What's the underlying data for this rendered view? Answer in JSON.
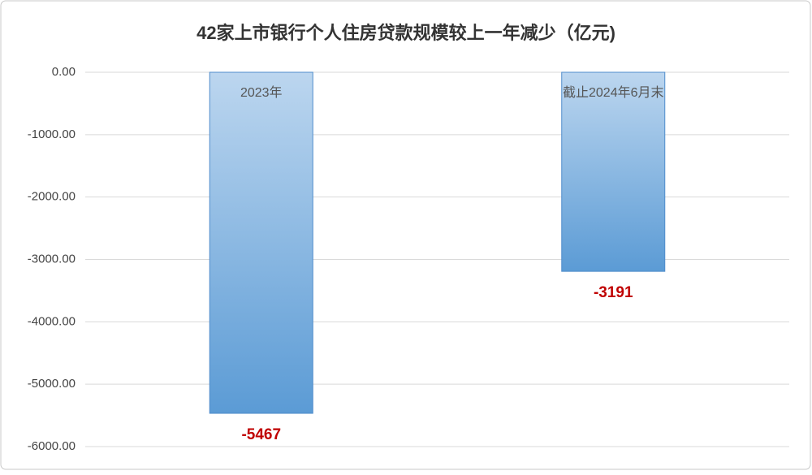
{
  "chart_data": {
    "type": "bar",
    "title": "42家上市银行个人住房贷款规模较上一年减少（亿元)",
    "categories": [
      "2023年",
      "截止2024年6月末"
    ],
    "values": [
      -5467,
      -3191
    ],
    "color": "#5b9bd5",
    "ylim": [
      -6000,
      0
    ],
    "yticks": [
      {
        "value": 0,
        "label": "0.00"
      },
      {
        "value": -1000,
        "label": "-1000.00"
      },
      {
        "value": -2000,
        "label": "-2000.00"
      },
      {
        "value": -3000,
        "label": "-3000.00"
      },
      {
        "value": -4000,
        "label": "-4000.00"
      },
      {
        "value": -5000,
        "label": "-5000.00"
      },
      {
        "value": -6000,
        "label": "-6000.00"
      }
    ],
    "grid": true
  }
}
